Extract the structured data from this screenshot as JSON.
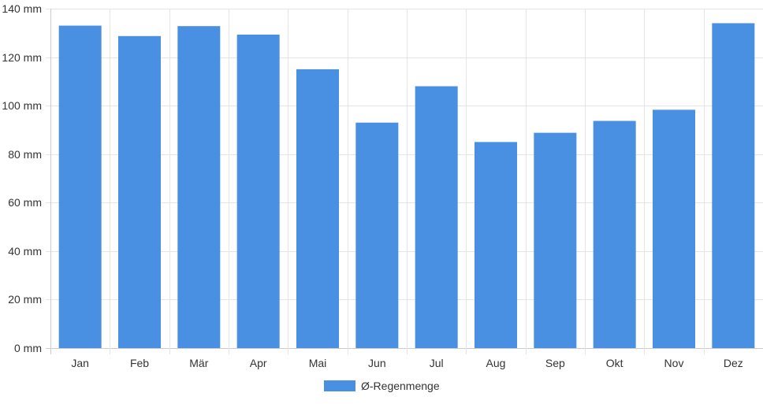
{
  "chart_data": {
    "type": "bar",
    "categories": [
      "Jan",
      "Feb",
      "Mär",
      "Apr",
      "Mai",
      "Jun",
      "Jul",
      "Aug",
      "Sep",
      "Okt",
      "Nov",
      "Dez"
    ],
    "series": [
      {
        "name": "Ø-Regenmenge",
        "values": [
          133,
          128.7,
          132.8,
          129.3,
          115,
          93,
          108,
          85,
          88.8,
          93.7,
          98.3,
          134
        ],
        "color": "#4a90e2"
      }
    ],
    "ylim": [
      0,
      140
    ],
    "y_ticks": [
      {
        "value": 0,
        "label": "0 mm"
      },
      {
        "value": 20,
        "label": "20 mm"
      },
      {
        "value": 40,
        "label": "40 mm"
      },
      {
        "value": 60,
        "label": "60 mm"
      },
      {
        "value": 80,
        "label": "80 mm"
      },
      {
        "value": 100,
        "label": "100 mm"
      },
      {
        "value": 120,
        "label": "120 mm"
      },
      {
        "value": 140,
        "label": "140 mm"
      }
    ],
    "grid": true,
    "legend_position": "bottom-center",
    "colors": {
      "grid": "#e5e5e5",
      "axis": "#cccccc",
      "text": "#333333"
    }
  }
}
